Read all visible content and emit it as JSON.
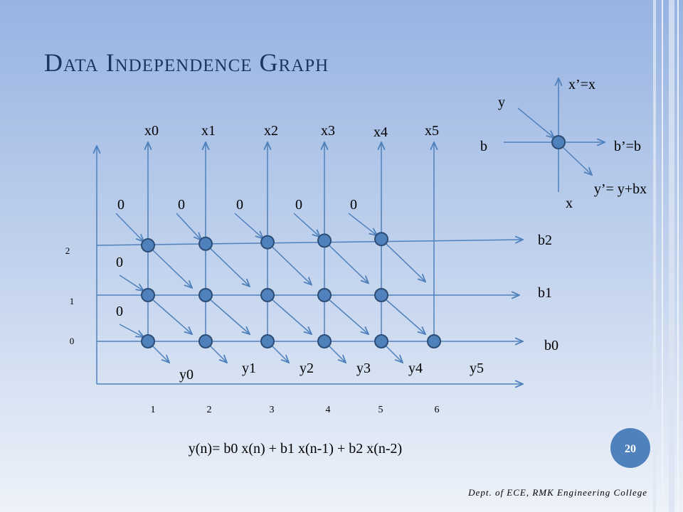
{
  "title": "Data Independence Graph",
  "graph": {
    "x_labels": [
      "x0",
      "x1",
      "x2",
      "x3",
      "x4",
      "x5"
    ],
    "top_inputs": [
      "0",
      "0",
      "0",
      "0",
      "0"
    ],
    "left_inputs": [
      "0",
      "0"
    ],
    "row_labels": [
      "b2",
      "b1",
      "b0"
    ],
    "row_indices": [
      "2",
      "1",
      "0"
    ],
    "column_indices": [
      "1",
      "2",
      "3",
      "4",
      "5",
      "6"
    ],
    "y_labels": [
      "y0",
      "y1",
      "y2",
      "y3",
      "y4",
      "y5"
    ]
  },
  "legend": {
    "y_in": "y",
    "x_out": "x’=x",
    "b_in": "b",
    "b_out": "b’=b",
    "y_out": "y’= y+bx",
    "x_in": "x"
  },
  "equation": "y(n)= b0 x(n) + b1 x(n-1) + b2 x(n-2)",
  "page_number": "20",
  "footer": "Dept. of ECE, RMK Engineering College"
}
